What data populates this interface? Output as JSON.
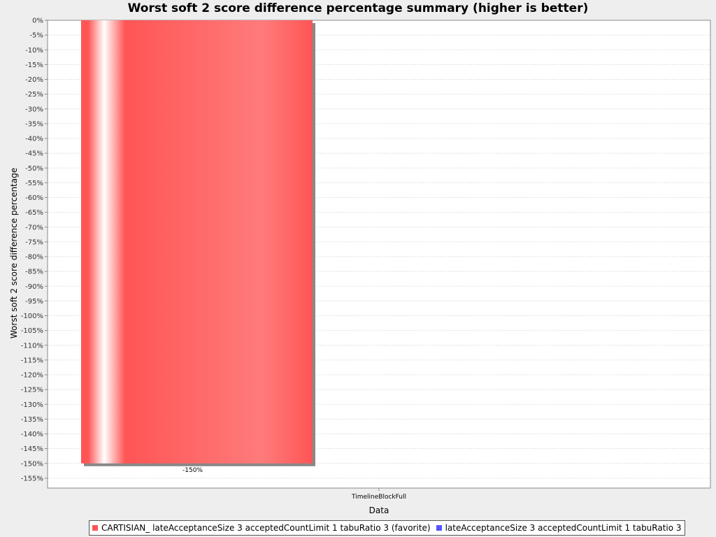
{
  "chart_data": {
    "type": "bar",
    "title": "Worst soft 2 score difference percentage summary (higher is better)",
    "xlabel": "Data",
    "ylabel": "Worst soft 2 score difference percentage",
    "categories": [
      "TimelineBlockFull"
    ],
    "series": [
      {
        "name": "CARTISIAN_ lateAcceptanceSize 3 acceptedCountLimit 1 tabuRatio 3 (favorite)",
        "values": [
          -150
        ],
        "data_labels": [
          "-150%"
        ],
        "color": "#ff5555"
      },
      {
        "name": "lateAcceptanceSize 3 acceptedCountLimit 1 tabuRatio 3",
        "values": [
          null
        ],
        "data_labels": [
          ""
        ],
        "color": "#5555ff"
      }
    ],
    "ylim": [
      -157,
      0
    ],
    "yticks": [
      0,
      -5,
      -10,
      -15,
      -20,
      -25,
      -30,
      -35,
      -40,
      -45,
      -50,
      -55,
      -60,
      -65,
      -70,
      -75,
      -80,
      -85,
      -90,
      -95,
      -100,
      -105,
      -110,
      -115,
      -120,
      -125,
      -130,
      -135,
      -140,
      -145,
      -150,
      -155
    ],
    "ytick_labels": [
      "0%",
      "-5%",
      "-10%",
      "-15%",
      "-20%",
      "-25%",
      "-30%",
      "-35%",
      "-40%",
      "-45%",
      "-50%",
      "-55%",
      "-60%",
      "-65%",
      "-70%",
      "-75%",
      "-80%",
      "-85%",
      "-90%",
      "-95%",
      "-100%",
      "-105%",
      "-110%",
      "-115%",
      "-120%",
      "-125%",
      "-130%",
      "-135%",
      "-140%",
      "-145%",
      "-150%",
      "-155%"
    ],
    "grid": true,
    "legend_placement": "bottom"
  }
}
